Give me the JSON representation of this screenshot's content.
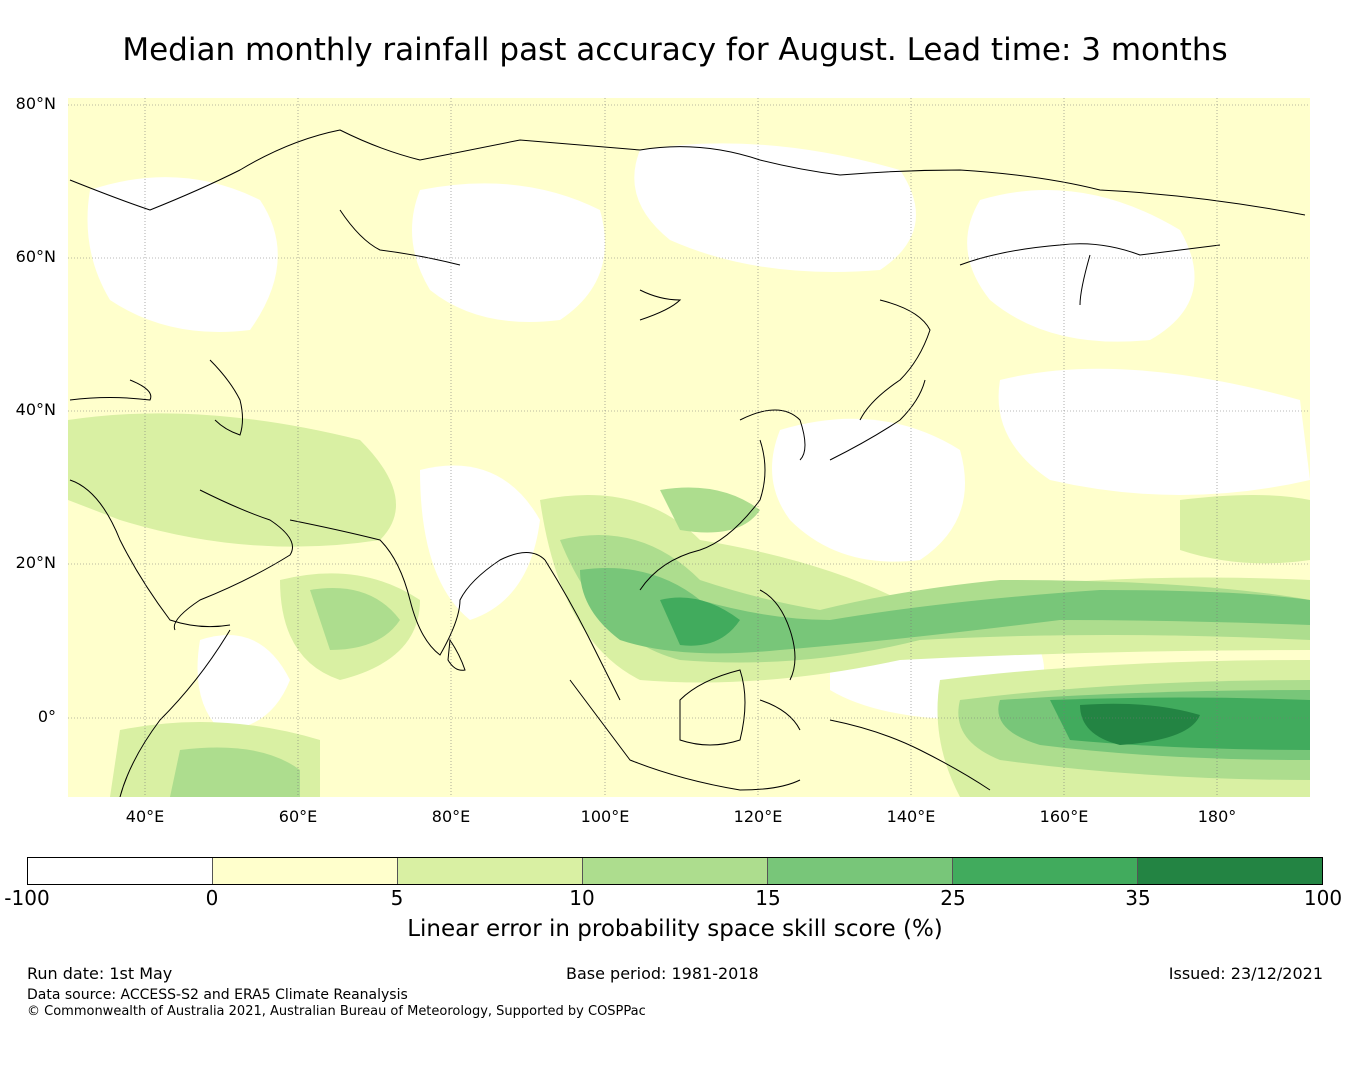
{
  "title": "Median monthly rainfall past accuracy for August. Lead time: 3 months",
  "map": {
    "lat_range": [
      -10,
      80
    ],
    "lon_range": [
      30,
      192
    ],
    "lat_labels": [
      "80°N",
      "60°N",
      "40°N",
      "20°N",
      "0°"
    ],
    "lon_labels": [
      "40°E",
      "60°E",
      "80°E",
      "100°E",
      "120°E",
      "140°E",
      "160°E",
      "180°"
    ],
    "gridlines": true
  },
  "colorbar": {
    "title": "Linear error in probability space skill score (%)",
    "ticks": [
      "-100",
      "0",
      "5",
      "10",
      "15",
      "25",
      "35",
      "100"
    ],
    "colors": [
      "#ffffff",
      "#ffffcc",
      "#d9f0a3",
      "#addd8e",
      "#78c679",
      "#41ab5d",
      "#238443"
    ]
  },
  "footer": {
    "run_date": "Run date: 1st May",
    "base_period": "Base period: 1981-2018",
    "issued": "Issued: 23/12/2021",
    "source": "Data source: ACCESS-S2 and ERA5 Climate Reanalysis",
    "copyright": "© Commonwealth of Australia 2021, Australian Bureau of Meteorology, Supported by COSPPac"
  }
}
